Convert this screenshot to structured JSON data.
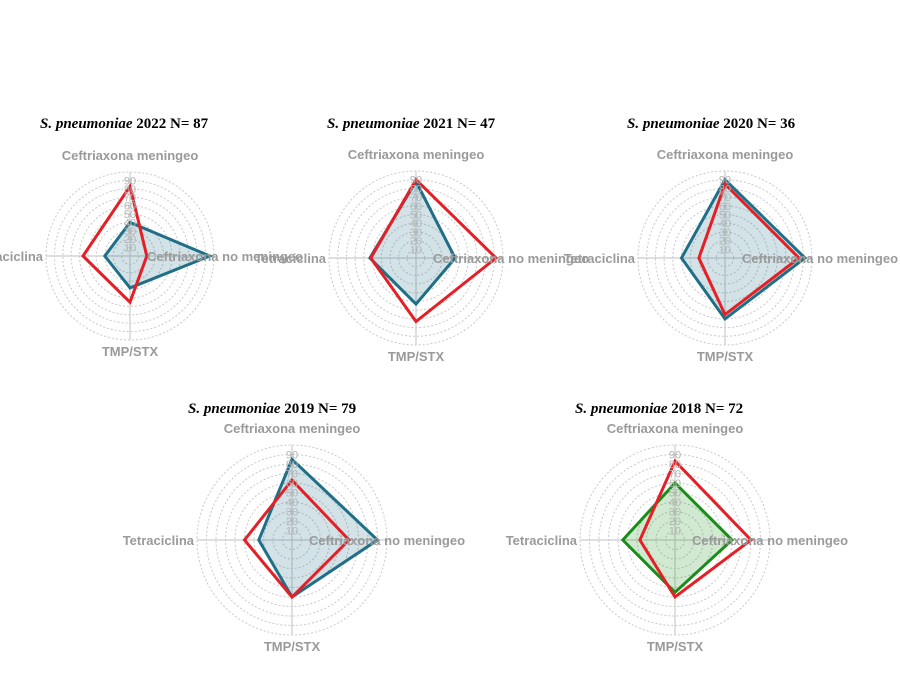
{
  "chart_data": [
    {
      "type": "radar",
      "organism": "S. pneumoniae",
      "title_suffix": "2022 N= 87",
      "axes": [
        "Ceftriaxona meningeo",
        "Ceftriaxona no meningeo",
        "TMP/STX",
        "Tetraciclina"
      ],
      "ticks": [
        "10",
        "20",
        "30",
        "40",
        "50",
        "60",
        "70",
        "80",
        "90"
      ],
      "rmax": 100,
      "series": [
        {
          "color": "#e41f26",
          "fill": false,
          "values": [
            83,
            20,
            55,
            56
          ]
        },
        {
          "color": "#1f6f86",
          "fill": true,
          "values": [
            40,
            95,
            38,
            30
          ]
        }
      ]
    },
    {
      "type": "radar",
      "organism": "S. pneumoniae",
      "title_suffix": "2021 N= 47",
      "axes": [
        "Ceftriaxona meningeo",
        "Ceftriaxona no meningeo",
        "TMP/STX",
        "Tetraciclina"
      ],
      "ticks": [
        "10",
        "20",
        "30",
        "40",
        "50",
        "60",
        "70",
        "80",
        "90"
      ],
      "rmax": 100,
      "series": [
        {
          "color": "#e41f26",
          "fill": false,
          "values": [
            90,
            92,
            73,
            52
          ]
        },
        {
          "color": "#1f6f86",
          "fill": true,
          "values": [
            88,
            45,
            53,
            53
          ]
        }
      ]
    },
    {
      "type": "radar",
      "organism": "S. pneumoniae",
      "title_suffix": "2020 N= 36",
      "axes": [
        "Ceftriaxona meningeo",
        "Ceftriaxona no meningeo",
        "TMP/STX",
        "Tetraciclina"
      ],
      "ticks": [
        "10",
        "20",
        "30",
        "40",
        "50",
        "60",
        "70",
        "80",
        "90"
      ],
      "rmax": 100,
      "series": [
        {
          "color": "#e41f26",
          "fill": false,
          "values": [
            85,
            85,
            65,
            30
          ]
        },
        {
          "color": "#1f6f86",
          "fill": true,
          "values": [
            90,
            92,
            70,
            50
          ]
        }
      ]
    },
    {
      "type": "radar",
      "organism": "S. pneumoniae",
      "title_suffix": "2019 N= 79",
      "axes": [
        "Ceftriaxona meningeo",
        "Ceftriaxona no meningeo",
        "TMP/STX",
        "Tetraciclina"
      ],
      "ticks": [
        "10",
        "20",
        "30",
        "40",
        "50",
        "60",
        "70",
        "80",
        "90"
      ],
      "rmax": 100,
      "series": [
        {
          "color": "#e41f26",
          "fill": false,
          "values": [
            63,
            60,
            60,
            50
          ]
        },
        {
          "color": "#1f6f86",
          "fill": true,
          "values": [
            85,
            90,
            60,
            35
          ]
        }
      ]
    },
    {
      "type": "radar",
      "organism": "S. pneumoniae",
      "title_suffix": "2018 N= 72",
      "axes": [
        "Ceftriaxona meningeo",
        "Ceftriaxona no meningeo",
        "TMP/STX",
        "Tetraciclina"
      ],
      "ticks": [
        "10",
        "20",
        "30",
        "40",
        "50",
        "60",
        "70",
        "80",
        "90"
      ],
      "rmax": 100,
      "series": [
        {
          "color": "#e41f26",
          "fill": false,
          "values": [
            83,
            80,
            60,
            37
          ]
        },
        {
          "color": "#1a8c1a",
          "fill": true,
          "values": [
            60,
            60,
            55,
            55
          ]
        }
      ]
    }
  ]
}
